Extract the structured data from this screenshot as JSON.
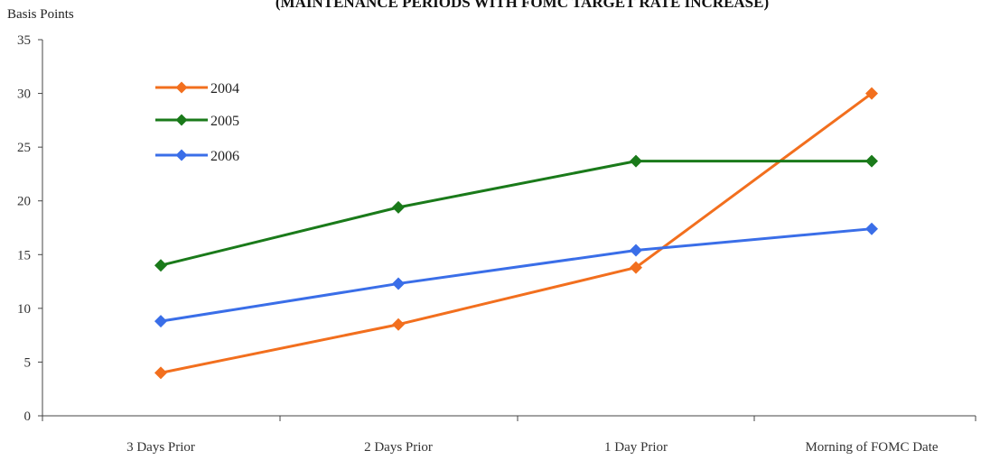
{
  "chart_data": {
    "type": "line",
    "title": "(MAINTENANCE PERIODS WITH FOMC TARGET RATE INCREASE)",
    "ylabel": "Basis Points",
    "xlabel": "",
    "categories": [
      "3 Days Prior",
      "2 Days Prior",
      "1 Day Prior",
      "Morning of FOMC Date"
    ],
    "ylim": [
      0,
      35
    ],
    "yticks": [
      0,
      5,
      10,
      15,
      20,
      25,
      30,
      35
    ],
    "grid": false,
    "legend_position": "top-left",
    "series": [
      {
        "name": "2004",
        "color": "#f26f1e",
        "values": [
          4,
          8.5,
          13.8,
          30
        ]
      },
      {
        "name": "2005",
        "color": "#1a7a1a",
        "values": [
          14,
          19.4,
          23.7,
          23.7
        ]
      },
      {
        "name": "2006",
        "color": "#3a6ee8",
        "values": [
          8.8,
          12.3,
          15.4,
          17.4
        ]
      }
    ]
  }
}
